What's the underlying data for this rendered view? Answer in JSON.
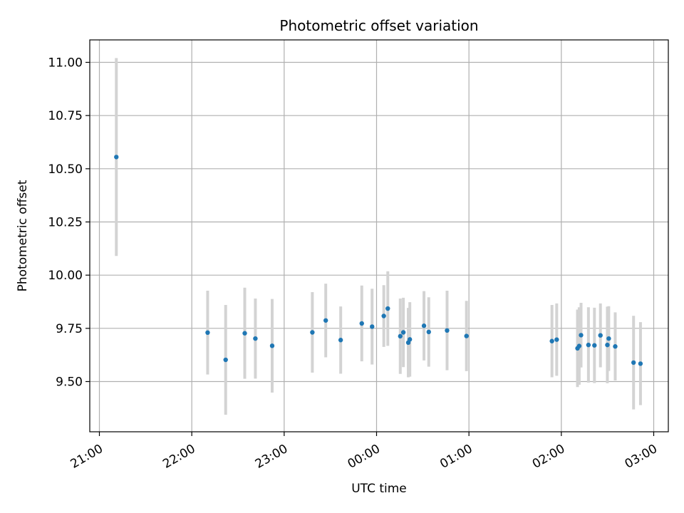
{
  "chart_data": {
    "type": "scatter",
    "title": "Photometric offset variation",
    "xlabel": "UTC time",
    "ylabel": "Photometric offset",
    "x_unit": "minutes after 21:00 UTC",
    "xlim": [
      -11,
      1840
    ],
    "ylim": [
      9.26,
      11.11
    ],
    "xticks": [
      {
        "value": 0,
        "label": "21:00"
      },
      {
        "value": 60,
        "label": "22:00"
      },
      {
        "value": 120,
        "label": "23:00"
      },
      {
        "value": 180,
        "label": "00:00"
      },
      {
        "value": 240,
        "label": "01:00"
      },
      {
        "value": 300,
        "label": "02:00"
      },
      {
        "value": 360,
        "label": "03:00"
      }
    ],
    "yticks": [
      {
        "value": 9.5,
        "label": "9.50"
      },
      {
        "value": 9.75,
        "label": "9.75"
      },
      {
        "value": 10.0,
        "label": "10.00"
      },
      {
        "value": 10.25,
        "label": "10.25"
      },
      {
        "value": 10.5,
        "label": "10.50"
      },
      {
        "value": 10.75,
        "label": "10.75"
      },
      {
        "value": 11.0,
        "label": "11.00"
      }
    ],
    "grid": true,
    "marker_color": "#1f77b4",
    "errorbar_color": "#d3d3d3",
    "points": [
      {
        "x": 11.0,
        "y": 10.555,
        "err": 0.465
      },
      {
        "x": 70.3,
        "y": 9.73,
        "err": 0.197
      },
      {
        "x": 82.0,
        "y": 9.602,
        "err": 0.258
      },
      {
        "x": 94.4,
        "y": 9.727,
        "err": 0.214
      },
      {
        "x": 101.3,
        "y": 9.702,
        "err": 0.188
      },
      {
        "x": 112.2,
        "y": 9.668,
        "err": 0.22
      },
      {
        "x": 138.3,
        "y": 9.731,
        "err": 0.189
      },
      {
        "x": 147.0,
        "y": 9.787,
        "err": 0.173
      },
      {
        "x": 156.7,
        "y": 9.695,
        "err": 0.158
      },
      {
        "x": 170.4,
        "y": 9.773,
        "err": 0.178
      },
      {
        "x": 177.1,
        "y": 9.758,
        "err": 0.178
      },
      {
        "x": 184.7,
        "y": 9.808,
        "err": 0.145
      },
      {
        "x": 187.3,
        "y": 9.843,
        "err": 0.175
      },
      {
        "x": 195.4,
        "y": 9.713,
        "err": 0.177
      },
      {
        "x": 197.4,
        "y": 9.731,
        "err": 0.163
      },
      {
        "x": 200.6,
        "y": 9.683,
        "err": 0.163
      },
      {
        "x": 201.6,
        "y": 9.698,
        "err": 0.175
      },
      {
        "x": 210.8,
        "y": 9.762,
        "err": 0.163
      },
      {
        "x": 213.9,
        "y": 9.733,
        "err": 0.163
      },
      {
        "x": 225.8,
        "y": 9.74,
        "err": 0.187
      },
      {
        "x": 238.4,
        "y": 9.714,
        "err": 0.165
      },
      {
        "x": 293.9,
        "y": 9.69,
        "err": 0.17
      },
      {
        "x": 297.0,
        "y": 9.697,
        "err": 0.17
      },
      {
        "x": 310.5,
        "y": 9.656,
        "err": 0.182
      },
      {
        "x": 311.6,
        "y": 9.667,
        "err": 0.182
      },
      {
        "x": 312.8,
        "y": 9.718,
        "err": 0.152
      },
      {
        "x": 317.6,
        "y": 9.672,
        "err": 0.177
      },
      {
        "x": 321.5,
        "y": 9.67,
        "err": 0.177
      },
      {
        "x": 325.4,
        "y": 9.717,
        "err": 0.15
      },
      {
        "x": 329.9,
        "y": 9.672,
        "err": 0.18
      },
      {
        "x": 330.8,
        "y": 9.702,
        "err": 0.152
      },
      {
        "x": 335.0,
        "y": 9.665,
        "err": 0.16
      },
      {
        "x": 346.9,
        "y": 9.589,
        "err": 0.22
      },
      {
        "x": 351.4,
        "y": 9.584,
        "err": 0.195
      }
    ]
  }
}
